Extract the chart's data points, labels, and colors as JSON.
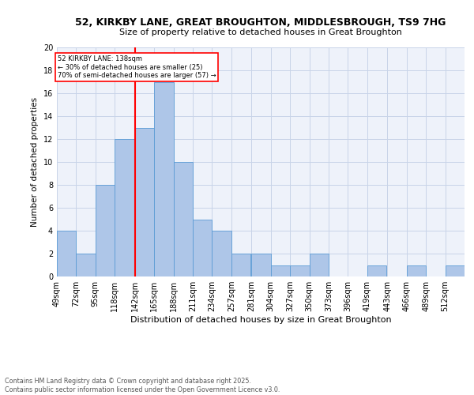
{
  "title_line1": "52, KIRKBY LANE, GREAT BROUGHTON, MIDDLESBROUGH, TS9 7HG",
  "title_line2": "Size of property relative to detached houses in Great Broughton",
  "xlabel": "Distribution of detached houses by size in Great Broughton",
  "ylabel": "Number of detached properties",
  "footer": "Contains HM Land Registry data © Crown copyright and database right 2025.\nContains public sector information licensed under the Open Government Licence v3.0.",
  "bin_labels": [
    "49sqm",
    "72sqm",
    "95sqm",
    "118sqm",
    "142sqm",
    "165sqm",
    "188sqm",
    "211sqm",
    "234sqm",
    "257sqm",
    "281sqm",
    "304sqm",
    "327sqm",
    "350sqm",
    "373sqm",
    "396sqm",
    "419sqm",
    "443sqm",
    "466sqm",
    "489sqm",
    "512sqm"
  ],
  "bin_edges": [
    49,
    72,
    95,
    118,
    142,
    165,
    188,
    211,
    234,
    257,
    281,
    304,
    327,
    350,
    373,
    396,
    419,
    443,
    466,
    489,
    512
  ],
  "bin_width": 23,
  "values": [
    4,
    2,
    8,
    12,
    13,
    17,
    10,
    5,
    4,
    2,
    2,
    1,
    1,
    2,
    0,
    0,
    1,
    0,
    1,
    0,
    1
  ],
  "bar_color": "#aec6e8",
  "bar_edge_color": "#5b9bd5",
  "grid_color": "#c8d4e8",
  "vline_x": 142,
  "vline_color": "red",
  "annotation_text": "52 KIRKBY LANE: 138sqm\n← 30% of detached houses are smaller (25)\n70% of semi-detached houses are larger (57) →",
  "annotation_box_color": "red",
  "ylim": [
    0,
    20
  ],
  "yticks": [
    0,
    2,
    4,
    6,
    8,
    10,
    12,
    14,
    16,
    18,
    20
  ],
  "background_color": "#eef2fa",
  "title_fontsize": 9,
  "subtitle_fontsize": 8,
  "ylabel_fontsize": 7.5,
  "xlabel_fontsize": 8,
  "tick_fontsize": 7,
  "footer_fontsize": 5.8
}
